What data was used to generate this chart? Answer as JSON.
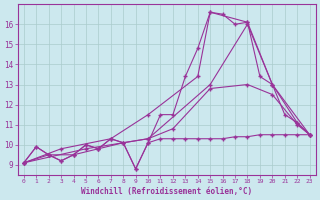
{
  "background_color": "#cce8ee",
  "grid_color": "#aacccc",
  "line_color": "#993399",
  "xlabel": "Windchill (Refroidissement éolien,°C)",
  "xlim": [
    -0.5,
    23.5
  ],
  "ylim": [
    8.5,
    17.0
  ],
  "yticks": [
    9,
    10,
    11,
    12,
    13,
    14,
    15,
    16
  ],
  "xticks": [
    0,
    1,
    2,
    3,
    4,
    5,
    6,
    7,
    8,
    9,
    10,
    11,
    12,
    13,
    14,
    15,
    16,
    17,
    18,
    19,
    20,
    21,
    22,
    23
  ],
  "series": [
    {
      "x": [
        0,
        1,
        2,
        3,
        4,
        5,
        6,
        7,
        8,
        9,
        10,
        11,
        12,
        13,
        14,
        15,
        16,
        17,
        18,
        19,
        20,
        21,
        22,
        23
      ],
      "y": [
        9.1,
        9.9,
        9.5,
        9.2,
        9.5,
        10.0,
        9.8,
        10.3,
        10.1,
        8.8,
        10.1,
        11.5,
        11.5,
        13.4,
        14.8,
        16.6,
        16.5,
        16.0,
        16.1,
        13.4,
        13.0,
        11.5,
        11.1,
        10.5
      ]
    },
    {
      "x": [
        0,
        3,
        7,
        10,
        14,
        15,
        18,
        20,
        22,
        23
      ],
      "y": [
        9.1,
        9.8,
        10.3,
        11.5,
        13.4,
        16.6,
        16.1,
        13.0,
        11.1,
        10.5
      ]
    },
    {
      "x": [
        0,
        2,
        4,
        6,
        8,
        10,
        12,
        15,
        18,
        20,
        22,
        23
      ],
      "y": [
        9.1,
        9.5,
        9.5,
        9.8,
        10.1,
        10.3,
        10.8,
        12.8,
        13.0,
        12.5,
        11.0,
        10.5
      ]
    },
    {
      "x": [
        0,
        1,
        2,
        3,
        4,
        5,
        6,
        7,
        8,
        9,
        10,
        11,
        12,
        13,
        14,
        15,
        16,
        17,
        18,
        19,
        20,
        21,
        22,
        23
      ],
      "y": [
        9.1,
        9.9,
        9.5,
        9.2,
        9.5,
        10.0,
        9.8,
        10.3,
        10.1,
        8.8,
        10.1,
        10.3,
        10.3,
        10.3,
        10.3,
        10.3,
        10.3,
        10.4,
        10.4,
        10.5,
        10.5,
        10.5,
        10.5,
        10.5
      ]
    },
    {
      "x": [
        0,
        5,
        10,
        15,
        18,
        20,
        23
      ],
      "y": [
        9.1,
        9.8,
        10.3,
        13.0,
        16.0,
        13.0,
        10.5
      ]
    }
  ]
}
